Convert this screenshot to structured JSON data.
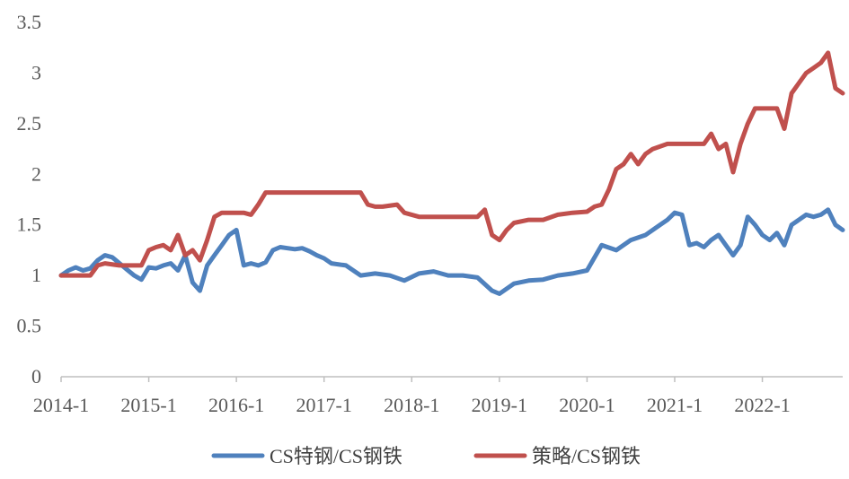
{
  "chart_data": {
    "type": "line",
    "title": "",
    "xlabel": "",
    "ylabel": "",
    "ylim": [
      0,
      3.5
    ],
    "yticks": [
      "0",
      "0.5",
      "1",
      "1.5",
      "2",
      "2.5",
      "3",
      "3.5"
    ],
    "xlim": [
      "2014-01",
      "2022-12"
    ],
    "xticks": [
      "2014-1",
      "2015-1",
      "2016-1",
      "2017-1",
      "2018-1",
      "2019-1",
      "2020-1",
      "2021-1",
      "2022-1"
    ],
    "grid": false,
    "legend_position": "bottom",
    "series": [
      {
        "name": "CS特钢/CS钢铁",
        "color": "#4F81BD",
        "x": [
          "2014-01",
          "2014-02",
          "2014-03",
          "2014-04",
          "2014-05",
          "2014-06",
          "2014-07",
          "2014-08",
          "2014-09",
          "2014-10",
          "2014-11",
          "2014-12",
          "2015-01",
          "2015-02",
          "2015-03",
          "2015-04",
          "2015-05",
          "2015-06",
          "2015-07",
          "2015-08",
          "2015-09",
          "2015-10",
          "2015-11",
          "2015-12",
          "2016-01",
          "2016-02",
          "2016-03",
          "2016-04",
          "2016-05",
          "2016-06",
          "2016-07",
          "2016-08",
          "2016-09",
          "2016-10",
          "2016-11",
          "2016-12",
          "2017-01",
          "2017-02",
          "2017-04",
          "2017-06",
          "2017-08",
          "2017-10",
          "2017-12",
          "2018-02",
          "2018-04",
          "2018-06",
          "2018-08",
          "2018-10",
          "2018-12",
          "2019-01",
          "2019-03",
          "2019-05",
          "2019-07",
          "2019-09",
          "2019-11",
          "2020-01",
          "2020-03",
          "2020-05",
          "2020-07",
          "2020-09",
          "2020-11",
          "2020-12",
          "2021-01",
          "2021-02",
          "2021-03",
          "2021-04",
          "2021-05",
          "2021-06",
          "2021-07",
          "2021-08",
          "2021-09",
          "2021-10",
          "2021-11",
          "2021-12",
          "2022-01",
          "2022-02",
          "2022-03",
          "2022-04",
          "2022-05",
          "2022-06",
          "2022-07",
          "2022-08",
          "2022-09",
          "2022-10",
          "2022-11",
          "2022-12"
        ],
        "values": [
          1.0,
          1.05,
          1.08,
          1.05,
          1.07,
          1.15,
          1.2,
          1.18,
          1.12,
          1.06,
          1.0,
          0.96,
          1.08,
          1.07,
          1.1,
          1.12,
          1.05,
          1.2,
          0.93,
          0.85,
          1.1,
          1.2,
          1.3,
          1.4,
          1.45,
          1.1,
          1.12,
          1.1,
          1.13,
          1.25,
          1.28,
          1.27,
          1.26,
          1.27,
          1.24,
          1.2,
          1.17,
          1.12,
          1.1,
          1.0,
          1.02,
          1.0,
          0.95,
          1.02,
          1.04,
          1.0,
          1.0,
          0.98,
          0.85,
          0.82,
          0.92,
          0.95,
          0.96,
          1.0,
          1.02,
          1.05,
          1.3,
          1.25,
          1.35,
          1.4,
          1.5,
          1.55,
          1.62,
          1.6,
          1.3,
          1.32,
          1.28,
          1.35,
          1.4,
          1.3,
          1.2,
          1.3,
          1.58,
          1.5,
          1.4,
          1.35,
          1.42,
          1.3,
          1.5,
          1.55,
          1.6,
          1.58,
          1.6,
          1.65,
          1.5,
          1.45
        ]
      },
      {
        "name": "策略/CS钢铁",
        "color": "#C0504D",
        "x": [
          "2014-01",
          "2014-03",
          "2014-05",
          "2014-06",
          "2014-07",
          "2014-09",
          "2014-11",
          "2014-12",
          "2015-01",
          "2015-02",
          "2015-03",
          "2015-04",
          "2015-05",
          "2015-06",
          "2015-07",
          "2015-08",
          "2015-09",
          "2015-10",
          "2015-11",
          "2015-12",
          "2016-01",
          "2016-02",
          "2016-03",
          "2016-04",
          "2016-05",
          "2016-06",
          "2016-07",
          "2016-09",
          "2016-12",
          "2017-03",
          "2017-06",
          "2017-07",
          "2017-08",
          "2017-09",
          "2017-11",
          "2017-12",
          "2018-02",
          "2018-04",
          "2018-06",
          "2018-08",
          "2018-10",
          "2018-11",
          "2018-12",
          "2019-01",
          "2019-02",
          "2019-03",
          "2019-05",
          "2019-07",
          "2019-09",
          "2019-11",
          "2020-01",
          "2020-02",
          "2020-03",
          "2020-04",
          "2020-05",
          "2020-06",
          "2020-07",
          "2020-08",
          "2020-09",
          "2020-10",
          "2020-12",
          "2021-03",
          "2021-05",
          "2021-06",
          "2021-07",
          "2021-08",
          "2021-09",
          "2021-10",
          "2021-11",
          "2021-12",
          "2022-01",
          "2022-02",
          "2022-03",
          "2022-04",
          "2022-05",
          "2022-06",
          "2022-07",
          "2022-08",
          "2022-09",
          "2022-10",
          "2022-11",
          "2022-12"
        ],
        "values": [
          1.0,
          1.0,
          1.0,
          1.1,
          1.12,
          1.1,
          1.1,
          1.1,
          1.25,
          1.28,
          1.3,
          1.25,
          1.4,
          1.2,
          1.25,
          1.15,
          1.35,
          1.58,
          1.62,
          1.62,
          1.62,
          1.62,
          1.6,
          1.7,
          1.82,
          1.82,
          1.82,
          1.82,
          1.82,
          1.82,
          1.82,
          1.7,
          1.68,
          1.68,
          1.7,
          1.62,
          1.58,
          1.58,
          1.58,
          1.58,
          1.58,
          1.65,
          1.4,
          1.35,
          1.45,
          1.52,
          1.55,
          1.55,
          1.6,
          1.62,
          1.63,
          1.68,
          1.7,
          1.85,
          2.05,
          2.1,
          2.2,
          2.1,
          2.2,
          2.25,
          2.3,
          2.3,
          2.3,
          2.4,
          2.25,
          2.3,
          2.02,
          2.3,
          2.5,
          2.65,
          2.65,
          2.65,
          2.65,
          2.45,
          2.8,
          2.9,
          3.0,
          3.05,
          3.1,
          3.2,
          2.85,
          2.8
        ]
      }
    ]
  }
}
